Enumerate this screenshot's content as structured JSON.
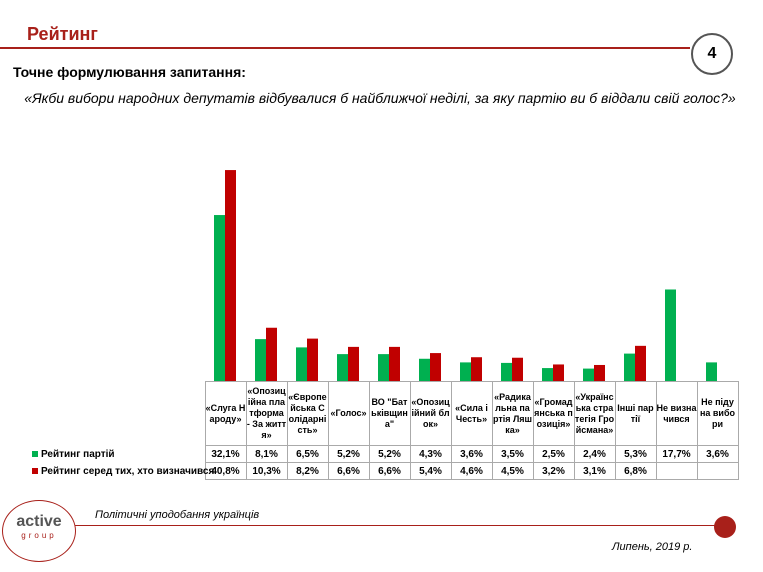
{
  "header": {
    "title": "Рейтинг",
    "page_number": "4"
  },
  "question": {
    "label": "Точне формулювання запитання:",
    "text": "«Якби вибори народних депутатів відбувалися б найближчої неділі, за яку партію ви б віддали свій голос?»"
  },
  "chart_data": {
    "type": "bar",
    "categories": [
      "«Слуга Народу»",
      "«Опозиційна платформа - За життя»",
      "«Європейська Солідарність»",
      "«Голос»",
      "ВО \"Батьківщина\"",
      "«Опозиційний блок»",
      "«Сила і Честь»",
      "«Радикальна партія Ляшка»",
      "«Громадянська позиція»",
      "«Українська стратегія Гройсмана»",
      "Інші партії",
      "Не визначився",
      "Не піду на вибори"
    ],
    "series": [
      {
        "name": "Рейтинг партій",
        "color": "#00b050",
        "values": [
          32.1,
          8.1,
          6.5,
          5.2,
          5.2,
          4.3,
          3.6,
          3.5,
          2.5,
          2.4,
          5.3,
          17.7,
          3.6
        ],
        "labels": [
          "32,1%",
          "8,1%",
          "6,5%",
          "5,2%",
          "5,2%",
          "4,3%",
          "3,6%",
          "3,5%",
          "2,5%",
          "2,4%",
          "5,3%",
          "17,7%",
          "3,6%"
        ]
      },
      {
        "name": "Рейтинг серед тих, хто визначився",
        "color": "#c00000",
        "values": [
          40.8,
          10.3,
          8.2,
          6.6,
          6.6,
          5.4,
          4.6,
          4.5,
          3.2,
          3.1,
          6.8,
          null,
          null
        ],
        "labels": [
          "40,8%",
          "10,3%",
          "8,2%",
          "6,6%",
          "6,6%",
          "5,4%",
          "4,6%",
          "4,5%",
          "3,2%",
          "3,1%",
          "6,8%",
          "",
          ""
        ]
      }
    ],
    "ylim": [
      0,
      45
    ],
    "grid": false,
    "legend": "table-bottom"
  },
  "footer": {
    "logo_main": "active",
    "logo_sub": "group",
    "text": "Політичні уподобання українців",
    "date": "Липень, 2019 р."
  }
}
